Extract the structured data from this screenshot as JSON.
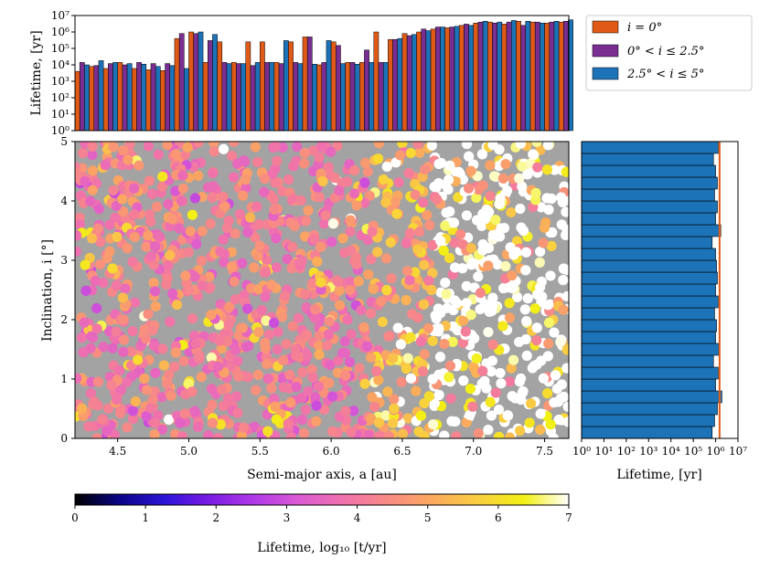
{
  "colors": {
    "i0": "#e05a17",
    "i0_2_5": "#7a2e92",
    "i2_5_5": "#1d73b8",
    "scatter_bg": "#a3a3a3",
    "median_line": "#e05a17",
    "colormap": [
      "#000000",
      "#0a0587",
      "#2d14d8",
      "#7a1be3",
      "#b13ae8",
      "#db5ad3",
      "#f072ac",
      "#f88b84",
      "#fbaa5c",
      "#f9cf40",
      "#f2f013",
      "#ffffff"
    ]
  },
  "chart_data": [
    {
      "type": "bar",
      "name": "top-lifetime-histogram",
      "ylabel": "Lifetime, [yr]",
      "yscale": "log",
      "ylim": [
        1,
        10000000
      ],
      "y_ticks": [
        "10⁰",
        "10¹",
        "10²",
        "10³",
        "10⁴",
        "10⁵",
        "10⁶",
        "10⁷"
      ],
      "xlim": [
        4.2,
        7.67
      ],
      "legend": {
        "placement": "outside-right-top",
        "entries": [
          "i = 0°",
          "0° < i ≤ 2.5°",
          "2.5° < i ≤ 5°"
        ]
      },
      "x_bins": [
        4.2,
        4.3,
        4.4,
        4.5,
        4.6,
        4.7,
        4.8,
        4.9,
        5.0,
        5.1,
        5.2,
        5.3,
        5.4,
        5.5,
        5.6,
        5.7,
        5.8,
        5.9,
        6.0,
        6.1,
        6.2,
        6.3,
        6.4,
        6.5,
        6.6,
        6.7,
        6.8,
        6.9,
        7.0,
        7.1,
        7.2,
        7.3,
        7.4,
        7.5,
        7.6
      ],
      "series": [
        {
          "name": "i = 0°",
          "values": [
            4000,
            8000,
            6000,
            14000,
            6000,
            5000,
            4500,
            400000,
            1000000,
            14000,
            250000,
            14000,
            250000,
            250000,
            14000,
            250000,
            500000,
            10000,
            250000,
            14000,
            14000,
            1000000,
            350000,
            800000,
            1000000,
            1500000,
            1800000,
            2500000,
            3500000,
            4000000,
            3000000,
            4500000,
            4000000,
            3500000,
            4000000
          ]
        },
        {
          "name": "0° < i ≤ 2.5°",
          "values": [
            14000,
            9000,
            12000,
            10000,
            14000,
            12000,
            12000,
            800000,
            800000,
            300000,
            14000,
            12000,
            9000,
            14000,
            12000,
            14000,
            500000,
            14000,
            150000,
            14000,
            80000,
            14000,
            350000,
            600000,
            1500000,
            2000000,
            2000000,
            3000000,
            4000000,
            3500000,
            4000000,
            2500000,
            4000000,
            4000000,
            4500000
          ]
        },
        {
          "name": "2.5° < i ≤ 5°",
          "values": [
            10000,
            18000,
            14000,
            12000,
            11000,
            8000,
            9000,
            6000,
            1000000,
            700000,
            12000,
            12000,
            14000,
            14000,
            300000,
            12000,
            11000,
            300000,
            12000,
            11000,
            14000,
            14000,
            400000,
            700000,
            1200000,
            2000000,
            2200000,
            2500000,
            4500000,
            4000000,
            5000000,
            4500000,
            3500000,
            4500000,
            5500000
          ]
        }
      ]
    },
    {
      "type": "scatter",
      "name": "inclination-vs-semimajor",
      "xlabel": "Semi-major axis, a [au]",
      "ylabel": "Inclination, i [°]",
      "xlim": [
        4.2,
        7.67
      ],
      "ylim": [
        0,
        5
      ],
      "x_ticks": [
        "4.5",
        "5.0",
        "5.5",
        "6.0",
        "6.5",
        "7.0",
        "7.5"
      ],
      "y_ticks": [
        "0",
        "1",
        "2",
        "3",
        "4",
        "5"
      ],
      "grid": false,
      "color_value": "log10 lifetime [yr]",
      "generation": {
        "points": 1600,
        "seed": 7,
        "lifetime_trend": "low (3-5) for a < 6.3, rising to 7 for a > 6.6"
      }
    },
    {
      "type": "bar",
      "name": "right-lifetime-histogram",
      "orientation": "horizontal",
      "xlabel": "Lifetime, [yr]",
      "xscale": "log",
      "xlim": [
        1,
        10000000
      ],
      "x_ticks": [
        "10⁰",
        "10¹",
        "10²",
        "10³",
        "10⁴",
        "10⁵",
        "10⁶",
        "10⁷"
      ],
      "median_line": 1500000,
      "y_bins": [
        0.0,
        0.2,
        0.4,
        0.6,
        0.8,
        1.0,
        1.2,
        1.4,
        1.6,
        1.8,
        2.0,
        2.2,
        2.4,
        2.6,
        2.8,
        3.0,
        3.2,
        3.4,
        3.6,
        3.8,
        4.0,
        4.2,
        4.4,
        4.6,
        4.8
      ],
      "values": [
        700000,
        900000,
        1200000,
        1900000,
        1000000,
        1300000,
        800000,
        1400000,
        1000000,
        1100000,
        900000,
        1300000,
        1000000,
        1200000,
        1100000,
        1000000,
        700000,
        1700000,
        1000000,
        1200000,
        900000,
        1200000,
        1000000,
        800000,
        1300000
      ]
    },
    {
      "type": "colorbar",
      "name": "lifetime-colorbar",
      "label": "Lifetime, log₁₀ [t/yr]",
      "range": [
        0,
        7
      ],
      "ticks": [
        "0",
        "1",
        "2",
        "3",
        "4",
        "5",
        "6",
        "7"
      ]
    }
  ]
}
